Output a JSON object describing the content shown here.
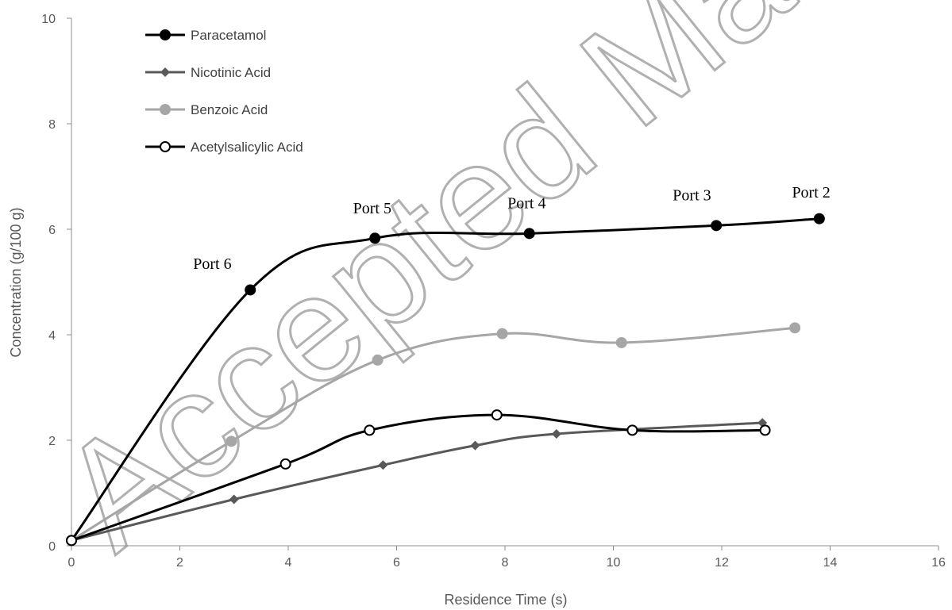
{
  "chart_data": {
    "type": "line",
    "xlabel": "Residence Time (s)",
    "ylabel": "Concentration (g/100 g)",
    "xlim": [
      0,
      16
    ],
    "ylim": [
      0,
      10
    ],
    "xticks": [
      "0",
      "2",
      "4",
      "6",
      "8",
      "10",
      "12",
      "14",
      "16"
    ],
    "yticks": [
      "0",
      "2",
      "4",
      "6",
      "8",
      "10"
    ],
    "grid": false,
    "legend_position": "top-left",
    "series": [
      {
        "name": "Paracetamol",
        "color": "#000000",
        "marker": "filled-circle",
        "x": [
          0,
          3.3,
          5.6,
          8.45,
          11.9,
          13.8
        ],
        "y": [
          0.1,
          4.85,
          5.83,
          5.92,
          6.07,
          6.2
        ]
      },
      {
        "name": "Nicotinic Acid",
        "color": "#595959",
        "marker": "diamond",
        "x": [
          0,
          3.0,
          5.75,
          7.45,
          8.95,
          12.75
        ],
        "y": [
          0.1,
          0.88,
          1.53,
          1.9,
          2.12,
          2.33
        ]
      },
      {
        "name": "Benzoic Acid",
        "color": "#a6a6a6",
        "marker": "filled-circle",
        "x": [
          0,
          2.95,
          5.65,
          7.95,
          10.15,
          13.35
        ],
        "y": [
          0.1,
          1.98,
          3.52,
          4.02,
          3.85,
          4.13
        ]
      },
      {
        "name": "Acetylsalicylic Acid",
        "color": "#000000",
        "marker": "open-circle",
        "x": [
          0,
          3.95,
          5.5,
          7.85,
          10.35,
          12.8
        ],
        "y": [
          0.1,
          1.55,
          2.19,
          2.48,
          2.19,
          2.19
        ]
      }
    ],
    "annotations": [
      {
        "text": "Port 6",
        "x": 2.6,
        "y": 5.25
      },
      {
        "text": "Port 5",
        "x": 5.55,
        "y": 6.3
      },
      {
        "text": "Port 4",
        "x": 8.4,
        "y": 6.4
      },
      {
        "text": "Port 3",
        "x": 11.45,
        "y": 6.55
      },
      {
        "text": "Port 2",
        "x": 13.65,
        "y": 6.6
      }
    ]
  },
  "watermark": "Accepted Manuscript"
}
